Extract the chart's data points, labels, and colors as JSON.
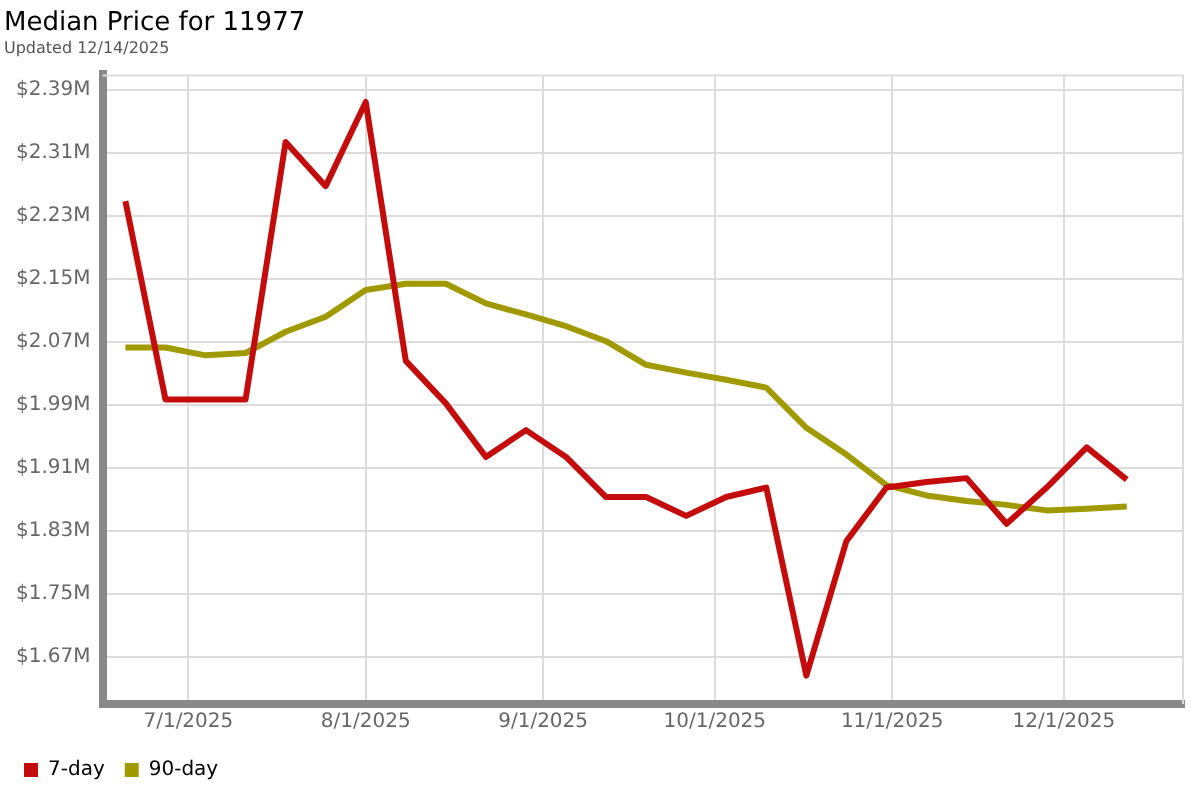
{
  "chart_data": {
    "type": "line",
    "title": "Median Price for 11977",
    "subtitle": "Updated 12/14/2025",
    "x": [
      "2025-06-20",
      "2025-06-27",
      "2025-07-04",
      "2025-07-11",
      "2025-07-18",
      "2025-07-25",
      "2025-08-01",
      "2025-08-08",
      "2025-08-15",
      "2025-08-22",
      "2025-08-29",
      "2025-09-05",
      "2025-09-12",
      "2025-09-19",
      "2025-09-26",
      "2025-10-03",
      "2025-10-10",
      "2025-10-17",
      "2025-10-24",
      "2025-10-31",
      "2025-11-07",
      "2025-11-14",
      "2025-11-21",
      "2025-11-28",
      "2025-12-05",
      "2025-12-12"
    ],
    "series": [
      {
        "name": "7-day",
        "color": "#c40c0c",
        "values": [
          2.249,
          1.997,
          1.997,
          1.997,
          2.324,
          2.268,
          2.375,
          2.046,
          1.992,
          1.924,
          1.958,
          1.924,
          1.873,
          1.873,
          1.849,
          1.873,
          1.885,
          1.646,
          1.817,
          1.885,
          1.892,
          1.897,
          1.839,
          1.885,
          1.936,
          1.895
        ]
      },
      {
        "name": "90-day",
        "color": "#a09a00",
        "values": [
          2.063,
          2.063,
          2.053,
          2.056,
          2.083,
          2.102,
          2.136,
          2.144,
          2.144,
          2.119,
          2.105,
          2.09,
          2.071,
          2.041,
          2.031,
          2.022,
          2.012,
          1.961,
          1.927,
          1.888,
          1.875,
          1.868,
          1.863,
          1.856,
          1.858,
          1.861
        ]
      }
    ],
    "xlim": [
      "2025-06-16",
      "2025-12-22"
    ],
    "xticks": [
      {
        "value": "2025-07-01",
        "label": "7/1/2025"
      },
      {
        "value": "2025-08-01",
        "label": "8/1/2025"
      },
      {
        "value": "2025-09-01",
        "label": "9/1/2025"
      },
      {
        "value": "2025-10-01",
        "label": "10/1/2025"
      },
      {
        "value": "2025-11-01",
        "label": "11/1/2025"
      },
      {
        "value": "2025-12-01",
        "label": "12/1/2025"
      }
    ],
    "ylim": [
      1.61,
      2.41
    ],
    "yticks": [
      {
        "value": 1.67,
        "label": "$1.67M"
      },
      {
        "value": 1.75,
        "label": "$1.75M"
      },
      {
        "value": 1.83,
        "label": "$1.83M"
      },
      {
        "value": 1.91,
        "label": "$1.91M"
      },
      {
        "value": 1.99,
        "label": "$1.99M"
      },
      {
        "value": 2.07,
        "label": "$2.07M"
      },
      {
        "value": 2.15,
        "label": "$2.15M"
      },
      {
        "value": 2.23,
        "label": "$2.23M"
      },
      {
        "value": 2.31,
        "label": "$2.31M"
      },
      {
        "value": 2.39,
        "label": "$2.39M"
      }
    ],
    "grid": true,
    "legend": "bottom left",
    "marker": "none",
    "line_style": "solid"
  }
}
